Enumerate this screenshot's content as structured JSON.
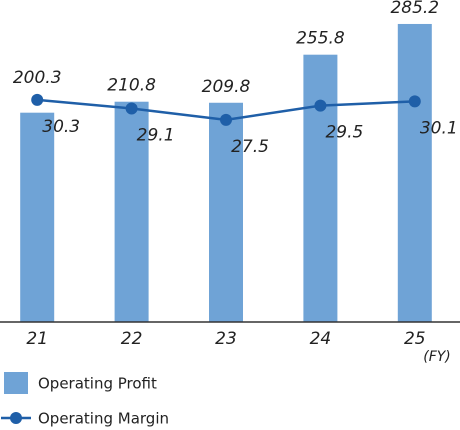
{
  "chart_data": {
    "type": "bar-line",
    "categories": [
      "21",
      "22",
      "23",
      "24",
      "25"
    ],
    "x_unit": "(FY)",
    "series": [
      {
        "name": "Operating Profit",
        "type": "bar",
        "color": "#6fa3d6",
        "values": [
          200.3,
          210.8,
          209.8,
          255.8,
          285.2
        ]
      },
      {
        "name": "Operating Margin",
        "type": "line",
        "axis": "y2",
        "color": "#1f5fa8",
        "values": [
          30.3,
          29.1,
          27.5,
          29.5,
          30.1
        ]
      }
    ],
    "ylim": [
      0,
      300
    ],
    "y2lim": [
      -0.8,
      43.1
    ]
  }
}
